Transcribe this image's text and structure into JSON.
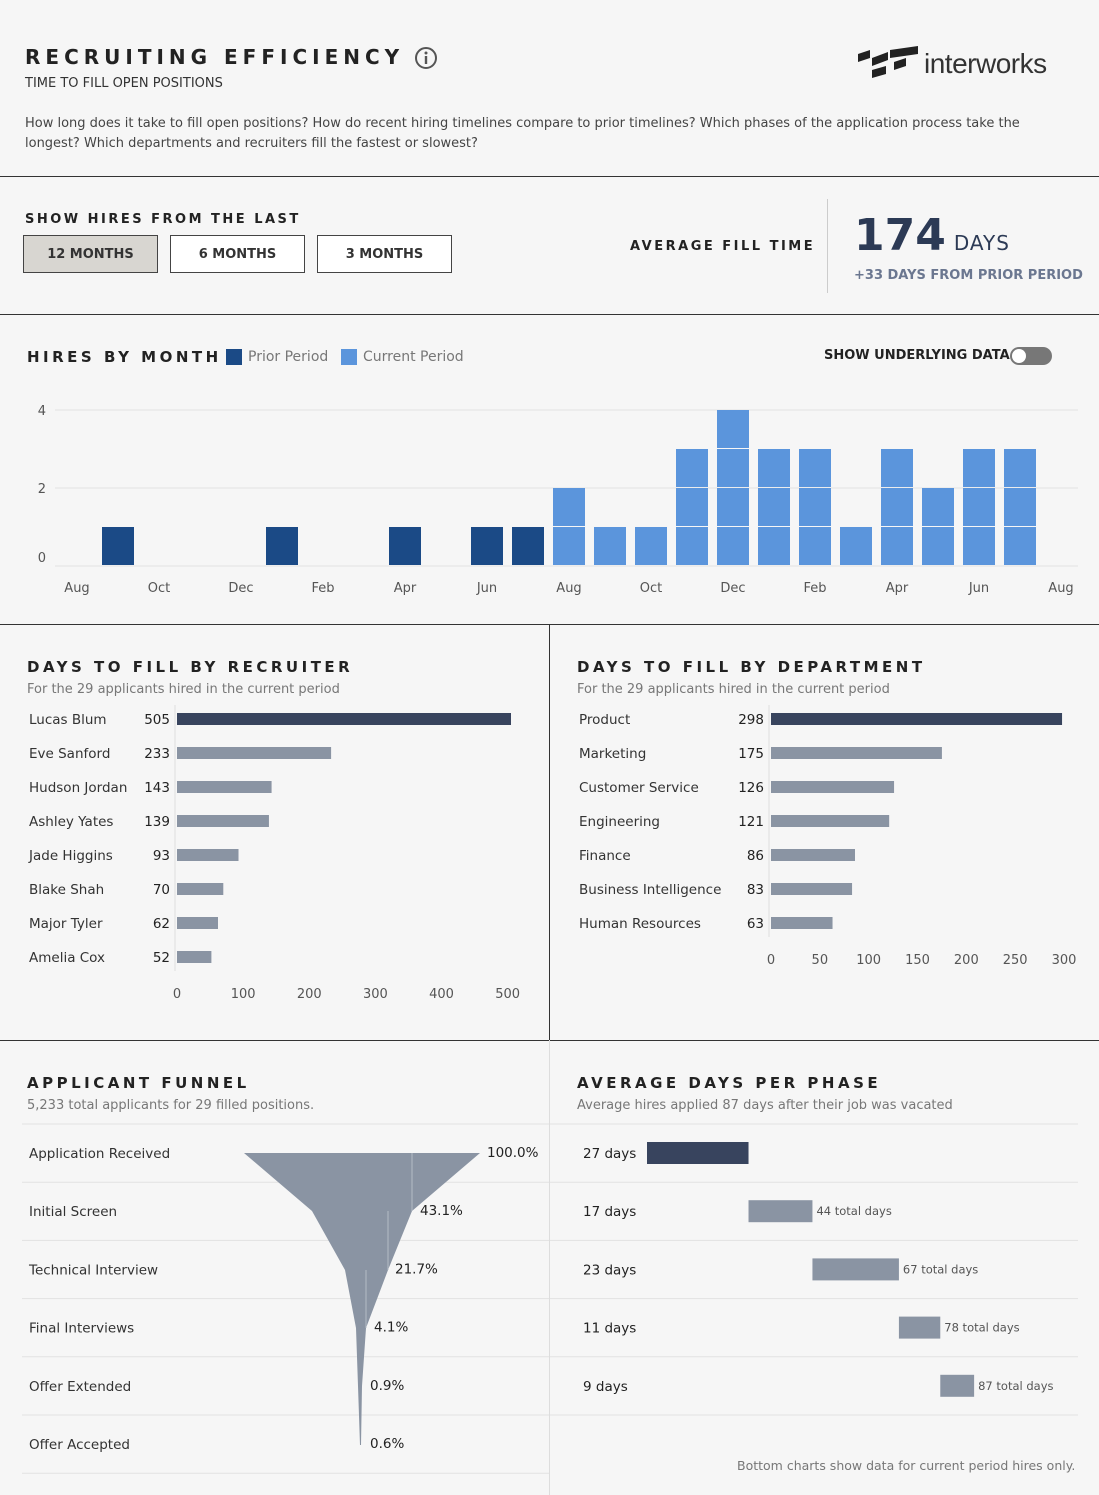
{
  "header": {
    "title": "RECRUITING EFFICIENCY",
    "subtitle": "TIME TO FILL OPEN POSITIONS",
    "description": "How long does it take to fill open positions? How do recent hiring timelines compare to prior timelines? Which phases of the application process take the longest? Which departments and recruiters fill the fastest or slowest?",
    "logo_text": "interworks"
  },
  "filter": {
    "label": "SHOW HIRES FROM THE LAST",
    "options": [
      "12 MONTHS",
      "6 MONTHS",
      "3 MONTHS"
    ],
    "selected": "12 MONTHS"
  },
  "kpi": {
    "label": "AVERAGE FILL TIME",
    "value": "174",
    "unit": "DAYS",
    "delta": "+33 DAYS FROM PRIOR PERIOD"
  },
  "hires": {
    "title": "HIRES BY MONTH",
    "legend": [
      "Prior Period",
      "Current Period"
    ],
    "toggle_label": "SHOW UNDERLYING DATA",
    "toggle_on": false,
    "colors": {
      "prior": "#1b4a86",
      "current": "#5b95dc"
    }
  },
  "recruiter": {
    "title": "DAYS TO FILL BY RECRUITER",
    "caption": "For the 29 applicants hired in the current period"
  },
  "department": {
    "title": "DAYS TO FILL BY DEPARTMENT",
    "caption": "For the 29 applicants hired in the current period"
  },
  "funnel": {
    "title": "APPLICANT FUNNEL",
    "caption": "5,233 total applicants for 29 filled positions."
  },
  "phase": {
    "title": "AVERAGE DAYS PER PHASE",
    "caption": "Average hires applied 87 days after their job was vacated"
  },
  "footer": "Bottom charts show data for current period hires only.",
  "chart_data": [
    {
      "type": "bar",
      "title": "HIRES BY MONTH",
      "x_tick_labels": [
        "Aug",
        "Oct",
        "Dec",
        "Feb",
        "Apr",
        "Jun",
        "Aug",
        "Oct",
        "Dec",
        "Feb",
        "Apr",
        "Jun",
        "Aug"
      ],
      "y_ticks": [
        0,
        2,
        4
      ],
      "ylim": [
        0,
        4
      ],
      "grid": true,
      "series": [
        {
          "name": "Prior Period",
          "months": [
            2,
            6,
            9,
            11,
            12
          ],
          "values": [
            1,
            1,
            1,
            1,
            1
          ]
        },
        {
          "name": "Current Period",
          "months": [
            13,
            14,
            15,
            16,
            17,
            18,
            19,
            20,
            21,
            22,
            23,
            24
          ],
          "values": [
            2,
            1,
            1,
            3,
            4,
            3,
            3,
            1,
            3,
            2,
            3,
            3
          ]
        }
      ]
    },
    {
      "type": "bar",
      "orientation": "horizontal",
      "title": "DAYS TO FILL BY RECRUITER",
      "categories": [
        "Lucas Blum",
        "Eve Sanford",
        "Hudson Jordan",
        "Ashley Yates",
        "Jade Higgins",
        "Blake Shah",
        "Major Tyler",
        "Amelia Cox"
      ],
      "values": [
        505,
        233,
        143,
        139,
        93,
        70,
        62,
        52
      ],
      "x_ticks": [
        0,
        100,
        200,
        300,
        400,
        500
      ],
      "xlim": [
        0,
        505
      ]
    },
    {
      "type": "bar",
      "orientation": "horizontal",
      "title": "DAYS TO FILL BY DEPARTMENT",
      "categories": [
        "Product",
        "Marketing",
        "Customer Service",
        "Engineering",
        "Finance",
        "Business Intelligence",
        "Human Resources"
      ],
      "values": [
        298,
        175,
        126,
        121,
        86,
        83,
        63
      ],
      "x_ticks": [
        0,
        50,
        100,
        150,
        200,
        250,
        300
      ],
      "xlim": [
        0,
        300
      ]
    },
    {
      "type": "funnel",
      "title": "APPLICANT FUNNEL",
      "categories": [
        "Application Received",
        "Initial Screen",
        "Technical Interview",
        "Final Interviews",
        "Offer Extended",
        "Offer Accepted"
      ],
      "percent_labels": [
        "100.0%",
        "43.1%",
        "21.7%",
        "4.1%",
        "0.9%",
        "0.6%"
      ],
      "values": [
        100.0,
        43.1,
        21.7,
        4.1,
        0.9,
        0.6
      ]
    },
    {
      "type": "bar",
      "orientation": "gantt",
      "title": "AVERAGE DAYS PER PHASE",
      "phases": [
        {
          "days_label": "27 days",
          "start": 0,
          "duration": 27,
          "total_label": ""
        },
        {
          "days_label": "17 days",
          "start": 27,
          "duration": 17,
          "total_label": "44 total days"
        },
        {
          "days_label": "23 days",
          "start": 44,
          "duration": 23,
          "total_label": "67 total days"
        },
        {
          "days_label": "11 days",
          "start": 67,
          "duration": 11,
          "total_label": "78 total days"
        },
        {
          "days_label": "9 days",
          "start": 78,
          "duration": 9,
          "total_label": "87 total days"
        }
      ],
      "xlim": [
        0,
        87
      ]
    }
  ]
}
